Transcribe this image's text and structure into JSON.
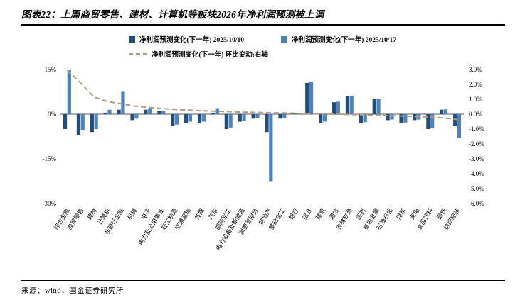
{
  "header": {
    "title": "图表22：上周商贸零售、建材、计算机等板块2026年净利润预测被上调"
  },
  "footer": {
    "source": "来源：wind，国金证券研究所"
  },
  "legend": {
    "series1": "净利润预测变化(下一年) 2025/10/10",
    "series2": "净利润预测变化(下一年) 2025/10/17",
    "series3": "净利润预测变化(下一年) 环比变动:右轴"
  },
  "colors": {
    "series1": "#1F4E79",
    "series2": "#4F81BD",
    "series3": "#B39B7D",
    "zero_line": "#595959"
  },
  "chart_data": {
    "type": "bar",
    "title": "上周商贸零售、建材、计算机等板块2026年净利润预测被上调",
    "categories": [
      "综合金融",
      "商贸零售",
      "建材",
      "计算机",
      "非银行金融",
      "机械",
      "电子",
      "电力及公用事业",
      "轻工制造",
      "交通运输",
      "传媒",
      "汽车",
      "国防军工",
      "电力设备及新能源",
      "消费者服务",
      "房地产",
      "基础化工",
      "银行",
      "综合",
      "建筑",
      "通信",
      "农林牧渔",
      "医药",
      "有色金属",
      "石油石化",
      "煤炭",
      "家电",
      "食品饮料",
      "钢铁",
      "纺织服装"
    ],
    "series": [
      {
        "name": "净利润预测变化(下一年) 2025/10/10",
        "type": "bar",
        "axis": "left",
        "values": [
          -5,
          -7,
          -6,
          0.5,
          1.5,
          -2,
          1.5,
          1,
          -4,
          -3,
          -3,
          0.5,
          -5,
          -2.5,
          -1.5,
          -6,
          -1.5,
          0.3,
          10.5,
          -3,
          4,
          6,
          -3,
          5,
          -2,
          -3,
          -2,
          -5,
          1.5,
          -4
        ]
      },
      {
        "name": "净利润预测变化(下一年) 2025/10/17",
        "type": "bar",
        "axis": "left",
        "values": [
          15,
          -5.5,
          -5,
          1.5,
          7.5,
          -1.5,
          2,
          1.2,
          -3.5,
          -2.5,
          -2.5,
          2,
          -4.5,
          -2.2,
          -1.2,
          -22.5,
          -1.3,
          0.4,
          11,
          -2.5,
          4.2,
          6.2,
          -2.7,
          5.1,
          -1.8,
          -2.8,
          -1.8,
          -4.8,
          1.6,
          -8
        ]
      },
      {
        "name": "净利润预测变化(下一年) 环比变动:右轴",
        "type": "dashed-line",
        "axis": "right",
        "values": [
          2.95,
          2.1,
          1.15,
          0.85,
          0.7,
          0.55,
          0.45,
          0.38,
          0.32,
          0.27,
          0.23,
          0.2,
          0.17,
          0.14,
          0.12,
          0.1,
          0.08,
          0.06,
          0.04,
          0.02,
          0,
          -0.02,
          -0.05,
          -0.08,
          -0.1,
          -0.13,
          -0.16,
          -0.2,
          -0.25,
          -0.35
        ]
      }
    ],
    "left_axis": {
      "min": -30,
      "max": 15,
      "ticks": [
        "15%",
        "0%",
        "-15%",
        "-30%"
      ],
      "tick_values": [
        15,
        0,
        -15,
        -30
      ]
    },
    "right_axis": {
      "min": -6,
      "max": 3,
      "ticks": [
        "3.0%",
        "2.0%",
        "1.0%",
        "0.0%",
        "-1.0%",
        "-2.0%",
        "-3.0%",
        "-4.0%",
        "-5.0%",
        "-6.0%"
      ],
      "tick_values": [
        3,
        2,
        1,
        0,
        -1,
        -2,
        -3,
        -4,
        -5,
        -6
      ]
    },
    "grid": false,
    "legend_position": "top"
  }
}
